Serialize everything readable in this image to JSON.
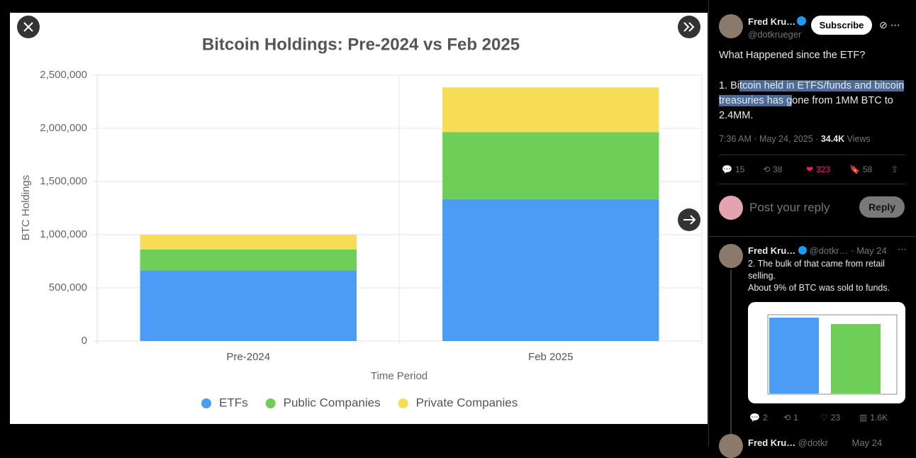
{
  "chart_data": {
    "type": "bar",
    "stacked": true,
    "title": "Bitcoin Holdings: Pre-2024 vs Feb 2025",
    "x_label": "Time Period",
    "y_label": "BTC Holdings",
    "categories": [
      "Pre-2024",
      "Feb 2025"
    ],
    "series": [
      {
        "name": "ETFs",
        "color": "#4a9cf5",
        "values": [
          665000,
          1335000
        ]
      },
      {
        "name": "Public Companies",
        "color": "#6ecf58",
        "values": [
          195000,
          630000
        ]
      },
      {
        "name": "Private Companies",
        "color": "#f7dc55",
        "values": [
          140000,
          420000
        ]
      }
    ],
    "ylim": [
      0,
      2500000
    ],
    "yticks": [
      0,
      {
        "value": 500000,
        "label": "500,000"
      },
      {
        "value": 1000000,
        "label": "1,000,000"
      },
      {
        "value": 1500000,
        "label": "1,500,000"
      },
      {
        "value": 2000000,
        "label": "2,000,000"
      },
      {
        "value": 2500000,
        "label": "2,500,000"
      }
    ],
    "grid": true,
    "legend": "bottom"
  },
  "post": {
    "author": "Fred Kru…",
    "handle": "@dotkrueger",
    "subscribe": "Subscribe",
    "heading": "What Happened since the ETF?",
    "body": [
      "1. Bi",
      "tcoin held in ETFS/funds and bitcoin treasuries has g",
      "one from 1MM BTC to 2.4MM."
    ],
    "meta": "7:36 AM · May 24, 2025 · ",
    "views_count": "34.4K",
    "views_label": "Views",
    "replies": "15",
    "reposts": "38",
    "likes": "323",
    "bookmarks": "58",
    "reply_placeholder": "Post your reply",
    "reply_button": "Reply"
  },
  "thread": [
    {
      "author": "Fred Kru…",
      "handle": "@dotkr…",
      "date": "· May 24",
      "text": [
        "2. The bulk of that came from retail selling.",
        "About 9% of BTC was sold to funds."
      ],
      "replies": "2",
      "reposts": "1",
      "likes": "23",
      "views": "1.6K"
    },
    {
      "author": "Fred Kru…",
      "handle": "@dotkr",
      "date": "May 24"
    }
  ]
}
